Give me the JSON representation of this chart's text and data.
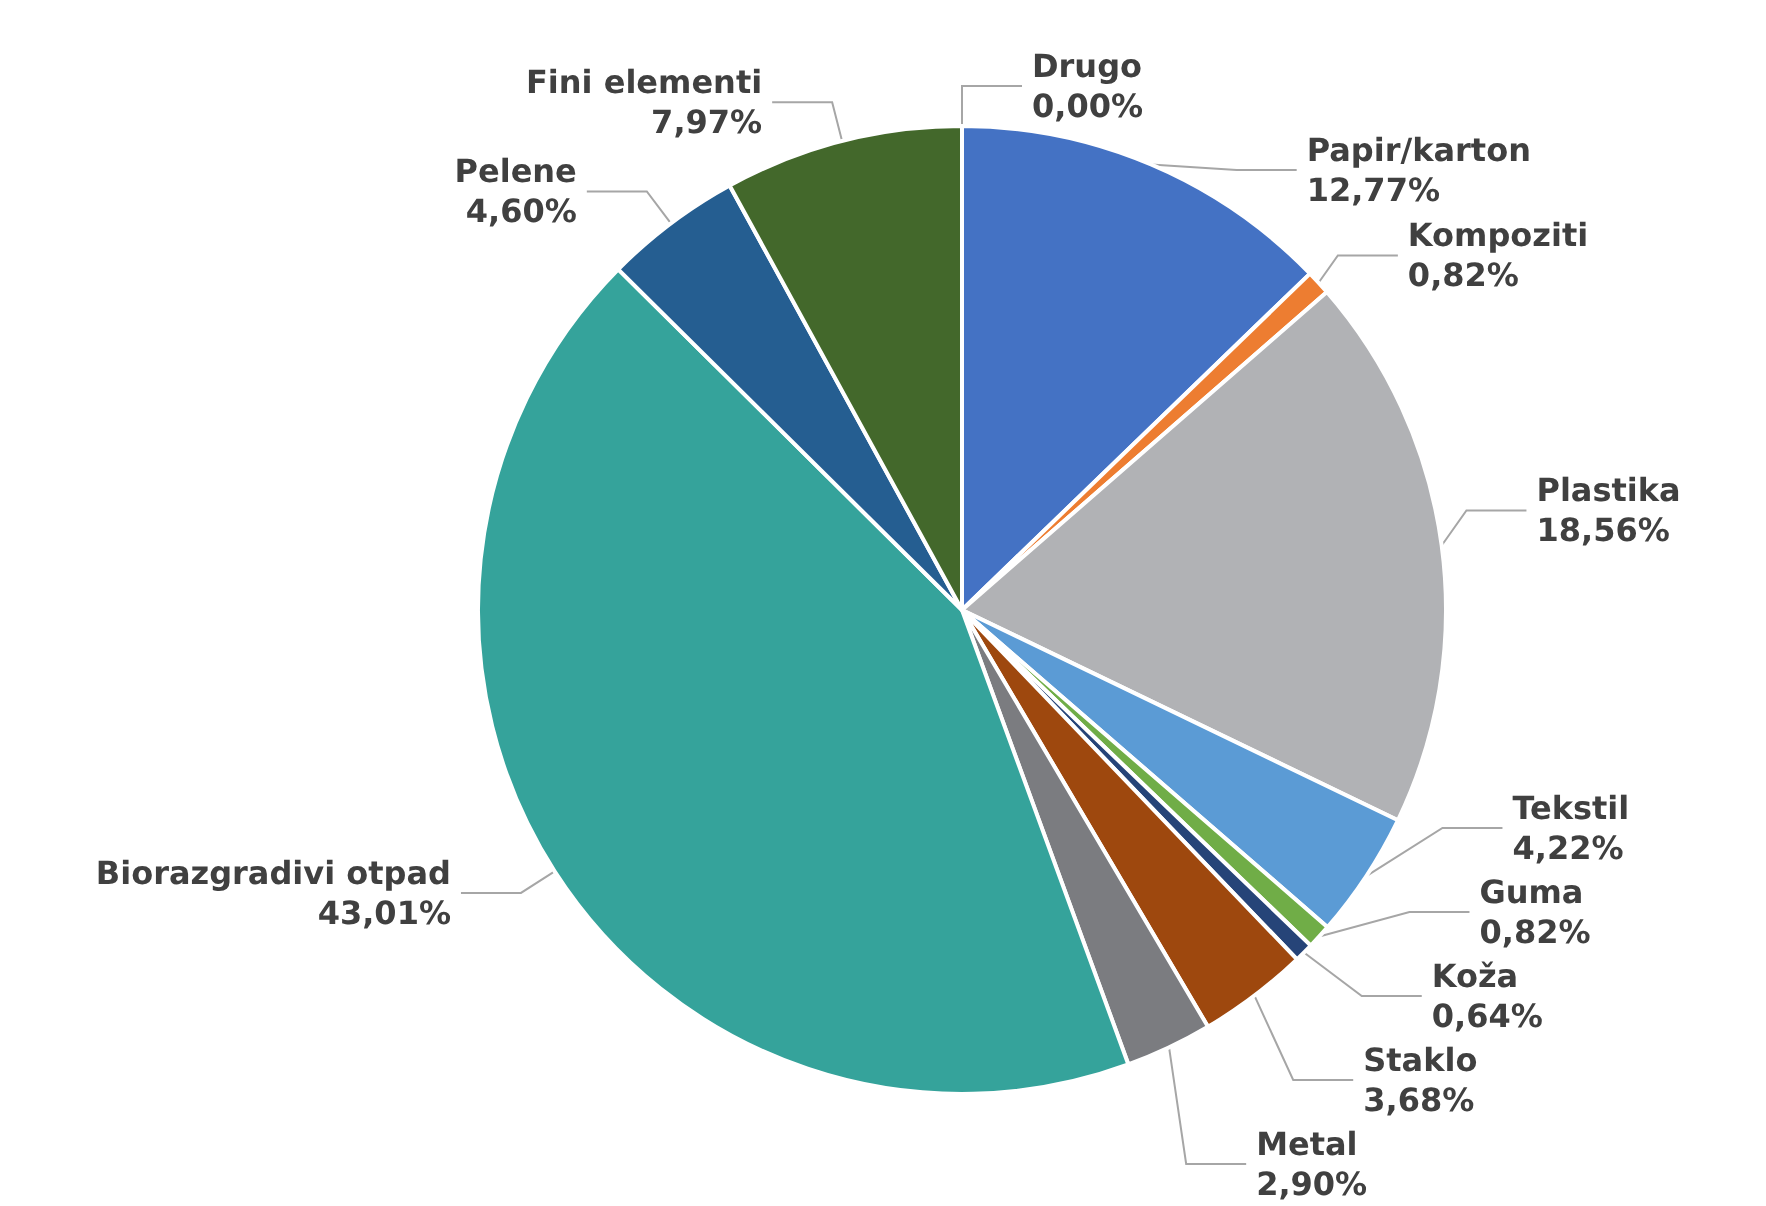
{
  "chart_data": {
    "type": "pie",
    "categories": [
      "Papir/karton",
      "Kompoziti",
      "Plastika",
      "Tekstil",
      "Guma",
      "Koža",
      "Staklo",
      "Metal",
      "Biorazgradivi otpad",
      "Pelene",
      "Fini elementi",
      "Drugo"
    ],
    "values": [
      12.77,
      0.82,
      18.56,
      4.22,
      0.82,
      0.64,
      3.68,
      2.9,
      43.01,
      4.6,
      7.97,
      0.0
    ],
    "value_labels": [
      "12,77%",
      "0,82%",
      "18,56%",
      "4,22%",
      "0,82%",
      "0,64%",
      "3,68%",
      "2,90%",
      "43,01%",
      "4,60%",
      "7,97%",
      "0,00%"
    ],
    "colors": [
      "#4472c4",
      "#ed7d31",
      "#b1b2b5",
      "#5b9bd5",
      "#70ad47",
      "#264478",
      "#9e480e",
      "#7b7c80",
      "#35a39b",
      "#255e91",
      "#43682b",
      "#997300"
    ],
    "legend": false
  }
}
